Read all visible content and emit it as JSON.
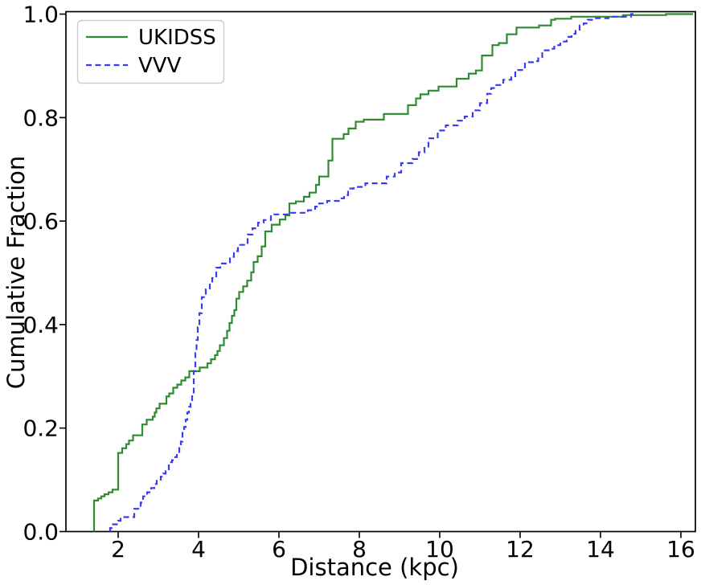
{
  "chart_data": {
    "type": "line",
    "subtype": "step-cdf",
    "title": "",
    "xlabel": "Distance (kpc)",
    "ylabel": "Cumulative Fraction",
    "xlim": [
      0.7,
      16.36
    ],
    "ylim": [
      0.0,
      1.0055
    ],
    "xticks": [
      2,
      4,
      6,
      8,
      10,
      12,
      14,
      16
    ],
    "yticks": [
      0.0,
      0.2,
      0.4,
      0.6,
      0.8,
      1.0
    ],
    "grid": false,
    "legend_position": "upper left",
    "axis_color": "#000000",
    "series": [
      {
        "name": "UKIDSS",
        "color": "#2f8b2f",
        "style": "solid",
        "start_x": 1.4,
        "end_x": 16.3,
        "points": [
          [
            1.4,
            0.06
          ],
          [
            1.5,
            0.064
          ],
          [
            1.58,
            0.068
          ],
          [
            1.66,
            0.072
          ],
          [
            1.76,
            0.076
          ],
          [
            1.86,
            0.081
          ],
          [
            2.0,
            0.152
          ],
          [
            2.1,
            0.161
          ],
          [
            2.2,
            0.169
          ],
          [
            2.27,
            0.176
          ],
          [
            2.37,
            0.186
          ],
          [
            2.6,
            0.207
          ],
          [
            2.71,
            0.216
          ],
          [
            2.86,
            0.222
          ],
          [
            2.91,
            0.23
          ],
          [
            2.95,
            0.238
          ],
          [
            3.03,
            0.247
          ],
          [
            3.2,
            0.261
          ],
          [
            3.27,
            0.267
          ],
          [
            3.37,
            0.278
          ],
          [
            3.47,
            0.284
          ],
          [
            3.57,
            0.292
          ],
          [
            3.67,
            0.298
          ],
          [
            3.77,
            0.31
          ],
          [
            4.03,
            0.317
          ],
          [
            4.22,
            0.325
          ],
          [
            4.31,
            0.333
          ],
          [
            4.41,
            0.341
          ],
          [
            4.47,
            0.349
          ],
          [
            4.53,
            0.36
          ],
          [
            4.63,
            0.374
          ],
          [
            4.71,
            0.388
          ],
          [
            4.77,
            0.403
          ],
          [
            4.83,
            0.417
          ],
          [
            4.89,
            0.428
          ],
          [
            4.94,
            0.45
          ],
          [
            5.01,
            0.463
          ],
          [
            5.11,
            0.474
          ],
          [
            5.21,
            0.485
          ],
          [
            5.31,
            0.501
          ],
          [
            5.37,
            0.521
          ],
          [
            5.47,
            0.532
          ],
          [
            5.57,
            0.551
          ],
          [
            5.66,
            0.58
          ],
          [
            5.82,
            0.593
          ],
          [
            6.02,
            0.603
          ],
          [
            6.16,
            0.611
          ],
          [
            6.26,
            0.634
          ],
          [
            6.42,
            0.638
          ],
          [
            6.62,
            0.647
          ],
          [
            6.76,
            0.655
          ],
          [
            6.92,
            0.67
          ],
          [
            7.0,
            0.686
          ],
          [
            7.23,
            0.717
          ],
          [
            7.33,
            0.759
          ],
          [
            7.61,
            0.768
          ],
          [
            7.73,
            0.779
          ],
          [
            7.91,
            0.792
          ],
          [
            8.11,
            0.796
          ],
          [
            8.61,
            0.807
          ],
          [
            9.21,
            0.824
          ],
          [
            9.41,
            0.837
          ],
          [
            9.52,
            0.845
          ],
          [
            9.72,
            0.852
          ],
          [
            9.97,
            0.86
          ],
          [
            10.42,
            0.875
          ],
          [
            10.72,
            0.885
          ],
          [
            10.9,
            0.891
          ],
          [
            11.05,
            0.92
          ],
          [
            11.31,
            0.94
          ],
          [
            11.47,
            0.944
          ],
          [
            11.67,
            0.961
          ],
          [
            11.91,
            0.974
          ],
          [
            12.47,
            0.978
          ],
          [
            12.77,
            0.989
          ],
          [
            12.87,
            0.991
          ],
          [
            13.27,
            0.995
          ],
          [
            14.56,
            0.998
          ],
          [
            15.63,
            1.0
          ]
        ]
      },
      {
        "name": "VVV",
        "color": "#3b3bef",
        "style": "dashed",
        "start_x": 1.8,
        "end_x": 14.85,
        "points": [
          [
            1.8,
            0.007
          ],
          [
            1.84,
            0.014
          ],
          [
            2.0,
            0.021
          ],
          [
            2.06,
            0.028
          ],
          [
            2.4,
            0.044
          ],
          [
            2.56,
            0.056
          ],
          [
            2.62,
            0.068
          ],
          [
            2.72,
            0.076
          ],
          [
            2.82,
            0.084
          ],
          [
            2.9,
            0.092
          ],
          [
            2.96,
            0.098
          ],
          [
            3.06,
            0.106
          ],
          [
            3.12,
            0.112
          ],
          [
            3.18,
            0.118
          ],
          [
            3.26,
            0.134
          ],
          [
            3.34,
            0.138
          ],
          [
            3.42,
            0.144
          ],
          [
            3.46,
            0.152
          ],
          [
            3.52,
            0.163
          ],
          [
            3.56,
            0.174
          ],
          [
            3.6,
            0.194
          ],
          [
            3.64,
            0.202
          ],
          [
            3.68,
            0.216
          ],
          [
            3.72,
            0.23
          ],
          [
            3.76,
            0.241
          ],
          [
            3.8,
            0.252
          ],
          [
            3.84,
            0.266
          ],
          [
            3.88,
            0.31
          ],
          [
            3.92,
            0.345
          ],
          [
            3.95,
            0.37
          ],
          [
            3.98,
            0.395
          ],
          [
            4.02,
            0.422
          ],
          [
            4.08,
            0.453
          ],
          [
            4.18,
            0.468
          ],
          [
            4.28,
            0.48
          ],
          [
            4.34,
            0.49
          ],
          [
            4.44,
            0.51
          ],
          [
            4.54,
            0.518
          ],
          [
            4.78,
            0.531
          ],
          [
            4.88,
            0.542
          ],
          [
            4.98,
            0.554
          ],
          [
            5.22,
            0.574
          ],
          [
            5.34,
            0.586
          ],
          [
            5.48,
            0.597
          ],
          [
            5.62,
            0.602
          ],
          [
            5.8,
            0.613
          ],
          [
            6.3,
            0.616
          ],
          [
            6.72,
            0.621
          ],
          [
            6.9,
            0.628
          ],
          [
            7.0,
            0.634
          ],
          [
            7.2,
            0.639
          ],
          [
            7.52,
            0.644
          ],
          [
            7.62,
            0.65
          ],
          [
            7.72,
            0.663
          ],
          [
            7.86,
            0.666
          ],
          [
            8.15,
            0.673
          ],
          [
            8.68,
            0.686
          ],
          [
            8.88,
            0.694
          ],
          [
            9.04,
            0.712
          ],
          [
            9.32,
            0.72
          ],
          [
            9.48,
            0.733
          ],
          [
            9.62,
            0.744
          ],
          [
            9.72,
            0.76
          ],
          [
            9.95,
            0.775
          ],
          [
            10.15,
            0.785
          ],
          [
            10.45,
            0.794
          ],
          [
            10.62,
            0.802
          ],
          [
            10.82,
            0.814
          ],
          [
            11.0,
            0.828
          ],
          [
            11.18,
            0.846
          ],
          [
            11.28,
            0.857
          ],
          [
            11.38,
            0.863
          ],
          [
            11.58,
            0.873
          ],
          [
            11.78,
            0.878
          ],
          [
            11.88,
            0.892
          ],
          [
            12.12,
            0.907
          ],
          [
            12.32,
            0.909
          ],
          [
            12.45,
            0.917
          ],
          [
            12.55,
            0.93
          ],
          [
            12.75,
            0.933
          ],
          [
            12.85,
            0.94
          ],
          [
            13.0,
            0.947
          ],
          [
            13.16,
            0.956
          ],
          [
            13.28,
            0.962
          ],
          [
            13.38,
            0.97
          ],
          [
            13.48,
            0.978
          ],
          [
            13.58,
            0.982
          ],
          [
            13.68,
            0.989
          ],
          [
            13.86,
            0.992
          ],
          [
            14.2,
            0.995
          ],
          [
            14.76,
            1.0
          ]
        ]
      }
    ]
  }
}
